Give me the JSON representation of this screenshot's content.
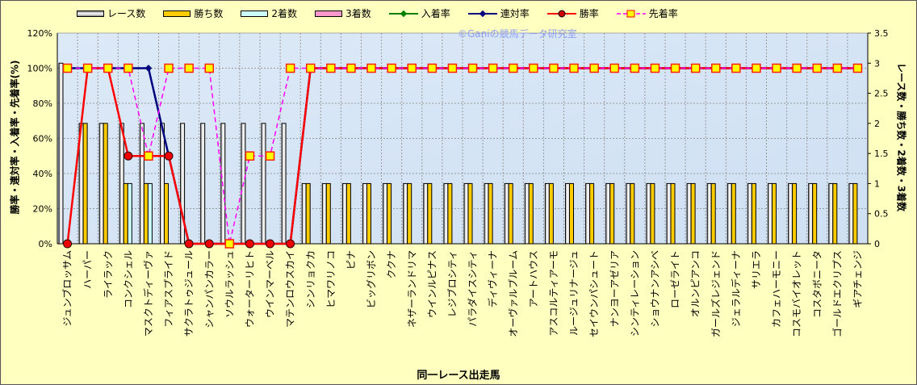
{
  "chart_data": {
    "type": "bar+line",
    "title": "",
    "watermark": "©Ganiの競馬データ研究室",
    "xlabel": "同一レース出走馬",
    "ylabel_left": "勝率・連対率・入着率・先着率(%)",
    "ylabel_right": "レース数・勝ち数・2着数・3着数",
    "ylim_left": [
      0,
      120
    ],
    "ylim_right": [
      0,
      3.5
    ],
    "yticks_left": [
      "0%",
      "20%",
      "40%",
      "60%",
      "80%",
      "100%",
      "120%"
    ],
    "yticks_right": [
      "0",
      "0.5",
      "1",
      "1.5",
      "2",
      "2.5",
      "3",
      "3.5"
    ],
    "legend_position": "top",
    "legend": [
      "レース数",
      "勝ち数",
      "2着数",
      "3着数",
      "入着率",
      "連対率",
      "勝率",
      "先着率"
    ],
    "colors": {
      "races": "#ffffff",
      "wins": "#ffcc00",
      "second": "#ccffff",
      "third": "#ff99cc",
      "place": "#008000",
      "rentai": "#000080",
      "win_rate": "#ff0000",
      "sen": "#ff00ff"
    },
    "categories": [
      "ジュンブロッサム",
      "ハーパー",
      "ライラック",
      "コンクシェル",
      "マスクトディーヴァ",
      "フィアスプライド",
      "サクラトゥジュール",
      "シャンパンカラー",
      "ソウルラッシュ",
      "ウォーターリヒト",
      "ウインマーベル",
      "マテンロウスカイ",
      "シンリョクカ",
      "ヒマワリノコ",
      "ピナ",
      "ビッグリボン",
      "ククナ",
      "ネザーランドリマ",
      "ウインルピナス",
      "レジブロシティ",
      "パラダイスシティ",
      "ディヴィーナ",
      "オーヴァルブルーム",
      "アートハウス",
      "アスコルティアーモ",
      "ルージュリナージュ",
      "セイウンパシュート",
      "ナンヨーアゼリア",
      "シンティレーション",
      "ショウナンアシベ",
      "ローゼライト",
      "オルンピアンコ",
      "ガールズレジェンド",
      "ジェラルディーナ",
      "サリエラ",
      "カフェハーモニー",
      "コスモバイオレット",
      "コスタボニータ",
      "ゴールドエクリプス",
      "ギアチェンジ"
    ],
    "series": [
      {
        "name": "レース数",
        "axis": "right",
        "values": [
          3,
          2,
          2,
          2,
          2,
          2,
          2,
          2,
          2,
          2,
          2,
          2,
          1,
          1,
          1,
          1,
          1,
          1,
          1,
          1,
          1,
          1,
          1,
          1,
          1,
          1,
          1,
          1,
          1,
          1,
          1,
          1,
          1,
          1,
          1,
          1,
          1,
          1,
          1,
          1
        ]
      },
      {
        "name": "勝ち数",
        "axis": "right",
        "values": [
          0,
          2,
          2,
          1,
          1,
          1,
          0,
          0,
          0,
          0,
          0,
          0,
          1,
          1,
          1,
          1,
          1,
          1,
          1,
          1,
          1,
          1,
          1,
          1,
          1,
          1,
          1,
          1,
          1,
          1,
          1,
          1,
          1,
          1,
          1,
          1,
          1,
          1,
          1,
          1
        ]
      },
      {
        "name": "2着数",
        "axis": "right",
        "values": [
          0,
          0,
          0,
          1,
          1,
          0,
          0,
          0,
          0,
          0,
          0,
          0,
          0,
          0,
          0,
          0,
          0,
          0,
          0,
          0,
          0,
          0,
          0,
          0,
          0,
          0,
          0,
          0,
          0,
          0,
          0,
          0,
          0,
          0,
          0,
          0,
          0,
          0,
          0,
          0
        ]
      },
      {
        "name": "3着数",
        "axis": "right",
        "values": [
          0,
          0,
          0,
          0,
          0,
          0,
          0,
          0,
          0,
          0,
          0,
          0,
          0,
          0,
          0,
          0,
          0,
          0,
          0,
          0,
          0,
          0,
          0,
          0,
          0,
          0,
          0,
          0,
          0,
          0,
          0,
          0,
          0,
          0,
          0,
          0,
          0,
          0,
          0,
          0
        ]
      },
      {
        "name": "入着率",
        "axis": "left",
        "values": [
          100,
          100,
          100,
          100,
          100,
          50,
          0,
          0,
          0,
          0,
          0,
          0,
          100,
          100,
          100,
          100,
          100,
          100,
          100,
          100,
          100,
          100,
          100,
          100,
          100,
          100,
          100,
          100,
          100,
          100,
          100,
          100,
          100,
          100,
          100,
          100,
          100,
          100,
          100,
          100
        ]
      },
      {
        "name": "連対率",
        "axis": "left",
        "values": [
          100,
          100,
          100,
          100,
          100,
          50,
          0,
          0,
          0,
          0,
          0,
          0,
          100,
          100,
          100,
          100,
          100,
          100,
          100,
          100,
          100,
          100,
          100,
          100,
          100,
          100,
          100,
          100,
          100,
          100,
          100,
          100,
          100,
          100,
          100,
          100,
          100,
          100,
          100,
          100
        ]
      },
      {
        "name": "勝率",
        "axis": "left",
        "values": [
          0,
          100,
          100,
          50,
          50,
          50,
          0,
          0,
          0,
          0,
          0,
          0,
          100,
          100,
          100,
          100,
          100,
          100,
          100,
          100,
          100,
          100,
          100,
          100,
          100,
          100,
          100,
          100,
          100,
          100,
          100,
          100,
          100,
          100,
          100,
          100,
          100,
          100,
          100,
          100
        ]
      },
      {
        "name": "先着率",
        "axis": "left",
        "values": [
          100,
          100,
          100,
          100,
          50,
          100,
          100,
          100,
          0,
          50,
          50,
          100,
          100,
          100,
          100,
          100,
          100,
          100,
          100,
          100,
          100,
          100,
          100,
          100,
          100,
          100,
          100,
          100,
          100,
          100,
          100,
          100,
          100,
          100,
          100,
          100,
          100,
          100,
          100,
          100
        ]
      }
    ]
  }
}
